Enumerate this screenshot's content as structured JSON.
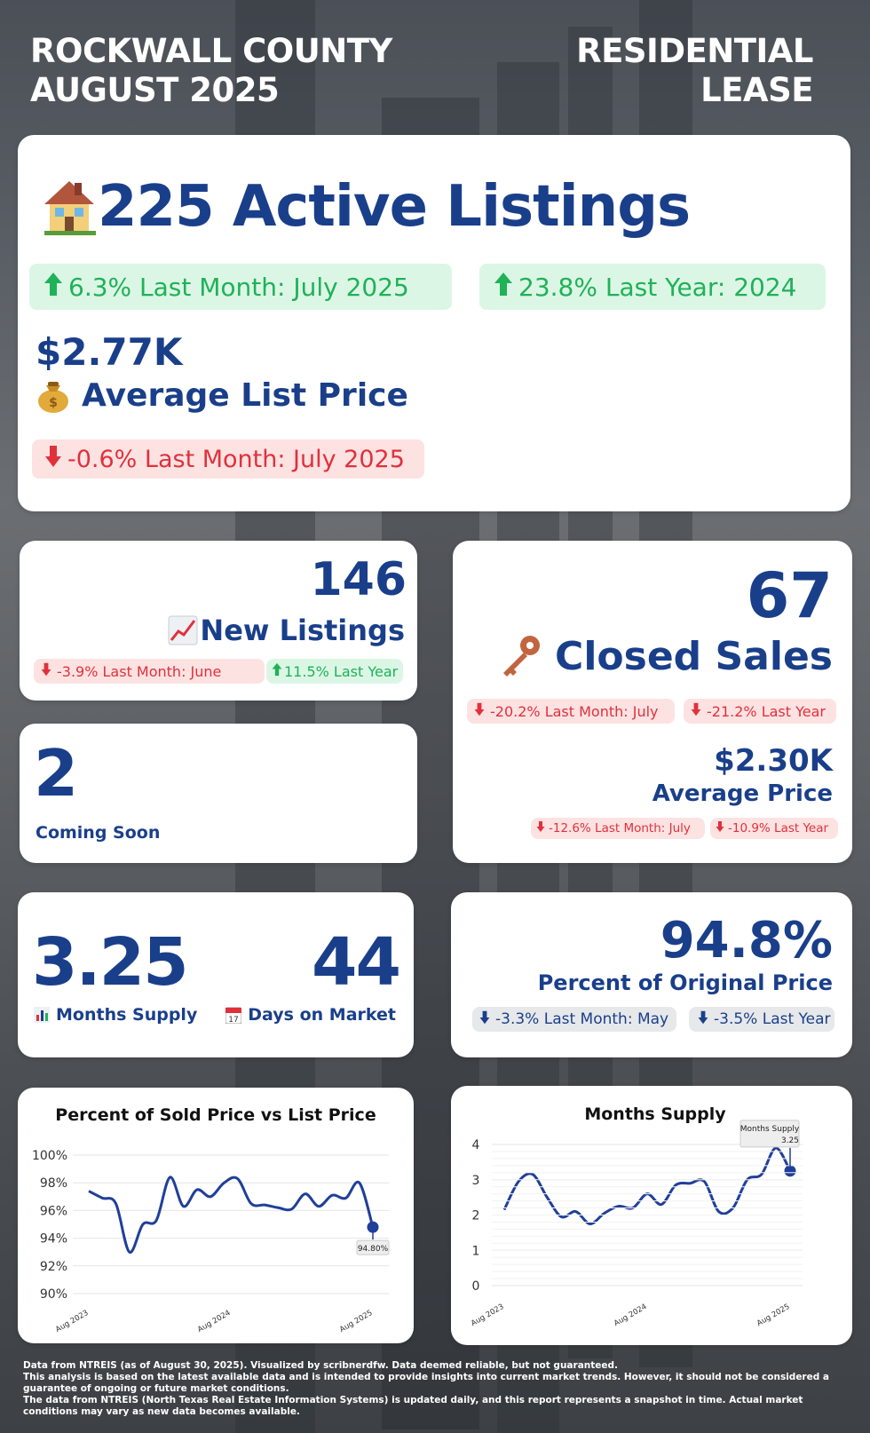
{
  "header": {
    "county_line1": "ROCKWALL COUNTY",
    "county_line2": "AUGUST 2025",
    "type_line1": "RESIDENTIAL",
    "type_line2": "LEASE"
  },
  "active": {
    "icon": "house-emoji",
    "title": "225 Active Listings",
    "pill_month": "6.3% Last Month: July 2025",
    "pill_year": "23.8% Last Year: 2024",
    "avg_price_value": "$2.77K",
    "avg_price_icon": "money-bag-emoji",
    "avg_price_label": "Average List Price",
    "avg_price_pill": "-0.6% Last Month: July 2025"
  },
  "new_listings": {
    "value": "146",
    "icon": "chart-increasing-emoji",
    "label": "New Listings",
    "pill_month": "-3.9% Last Month: June",
    "pill_year": "11.5% Last Year"
  },
  "closed_sales": {
    "value": "67",
    "icon": "key-emoji",
    "label": "Closed Sales",
    "pill_month": "-20.2% Last Month: July",
    "pill_year": "-21.2% Last Year",
    "avg_price_value": "$2.30K",
    "avg_price_label": "Average Price",
    "avg_pill_month": "-12.6% Last Month: July",
    "avg_pill_year": "-10.9% Last Year"
  },
  "coming_soon": {
    "value": "2",
    "label": "Coming Soon"
  },
  "supply": {
    "months_value": "3.25",
    "months_icon": "bar-chart-emoji",
    "months_label": "Months Supply",
    "dom_value": "44",
    "dom_icon": "calendar-emoji",
    "dom_label": "Days on Market"
  },
  "pct_original": {
    "value": "94.8%",
    "label": "Percent of Original Price",
    "pill_month": "-3.3% Last Month: May",
    "pill_year": "-3.5% Last Year"
  },
  "colors": {
    "brand_blue": "#1a3f8a",
    "up_green": "#1fb257",
    "down_red": "#e0313b",
    "line_blue": "#1f3f99"
  },
  "chart_data": [
    {
      "type": "line",
      "title": "Percent of Sold Price vs List Price",
      "x_ticks": [
        "Aug 2023",
        "Aug 2024",
        "Aug 2025"
      ],
      "y_ticks": [
        "100%",
        "98%",
        "96%",
        "94%",
        "92%",
        "90%"
      ],
      "ylim": [
        90,
        100
      ],
      "annotation": "94.80%",
      "series": [
        {
          "values": [
            97.4,
            96.9,
            96.5,
            93.0,
            95.0,
            95.3,
            98.4,
            96.3,
            97.5,
            97.0,
            98.0,
            98.3,
            96.5,
            96.4,
            96.2,
            96.1,
            97.2,
            96.3,
            97.1,
            96.9,
            98.0,
            94.8
          ]
        }
      ]
    },
    {
      "type": "line",
      "title": "Months Supply",
      "x_ticks": [
        "Aug 2023",
        "Aug 2024",
        "Aug 2025"
      ],
      "y_ticks": [
        "4",
        "3",
        "2",
        "1",
        "0"
      ],
      "ylim": [
        0,
        4
      ],
      "annotation_label": "Months Supply",
      "annotation_value": "3.25",
      "series": [
        {
          "values": [
            2.15,
            2.95,
            3.15,
            2.5,
            1.95,
            2.1,
            1.75,
            2.05,
            2.25,
            2.2,
            2.6,
            2.3,
            2.85,
            2.9,
            2.95,
            2.1,
            2.2,
            3.0,
            3.15,
            3.9,
            3.25
          ]
        }
      ]
    }
  ],
  "footer": {
    "line1": "Data from NTREIS (as of August 30, 2025). Visualized by scribnerdfw. Data deemed reliable, but not guaranteed.",
    "line2": "This analysis is based on the latest available data and is intended to provide insights into current market trends. However, it should not be considered a guarantee of ongoing or future market conditions.",
    "line3": "The data from NTREIS (North Texas Real Estate Information Systems) is updated daily, and this report represents a snapshot in time. Actual market conditions may vary as new data becomes available."
  }
}
